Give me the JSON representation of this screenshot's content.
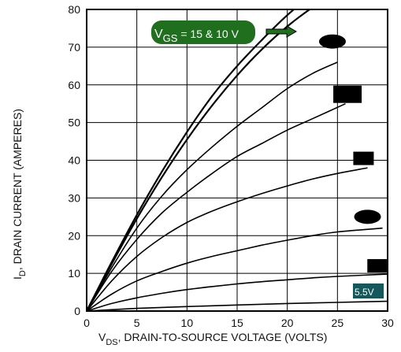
{
  "chart_data": {
    "type": "line",
    "xlabel_main": "V",
    "xlabel_sub": "DS",
    "xlabel_rest": ", DRAIN-TO-SOURCE VOLTAGE (VOLTS)",
    "ylabel_main": "I",
    "ylabel_sub": "D",
    "ylabel_rest": ", DRAIN CURRENT (AMPERES)",
    "xlim": [
      0,
      30
    ],
    "ylim": [
      0,
      80
    ],
    "xticks": [
      "0",
      "5",
      "10",
      "15",
      "20",
      "25",
      "30"
    ],
    "yticks": [
      "0",
      "10",
      "20",
      "30",
      "40",
      "50",
      "60",
      "70",
      "80"
    ],
    "grid": true,
    "accent_color": "#1f6f1f",
    "label_bg_color": "#000000",
    "vgs_label_v": "V",
    "vgs_label_sub": "GS",
    "vgs_label_rest": " = 15 & 10 V",
    "last_label": "5.5V",
    "series": [
      {
        "x": [
          0,
          2.5,
          5,
          7.5,
          10,
          12.5,
          15,
          17.5,
          20,
          22.5,
          25
        ],
        "values": [
          0,
          13,
          25.5,
          37,
          47.5,
          57,
          65,
          72,
          78.5,
          84,
          89
        ]
      },
      {
        "x": [
          0,
          2.5,
          5,
          7.5,
          10,
          12.5,
          15,
          17.5,
          20,
          22.5,
          25
        ],
        "values": [
          0,
          12.5,
          24.5,
          35.5,
          45.5,
          54.5,
          62.5,
          69.5,
          75.5,
          80.5,
          84.5
        ]
      },
      {
        "x": [
          0,
          2.5,
          5,
          7.5,
          10,
          12.5,
          15,
          17.5,
          20,
          22.5,
          25
        ],
        "values": [
          0,
          11.5,
          22,
          30.5,
          37.5,
          43.5,
          49,
          54,
          59,
          63,
          66
        ]
      },
      {
        "x": [
          0,
          2.5,
          5,
          7.5,
          10,
          12.5,
          15,
          17.5,
          20,
          22.5,
          25.8
        ],
        "values": [
          0,
          10.5,
          19,
          26,
          31.5,
          36.5,
          41,
          44.5,
          48,
          51,
          55
        ]
      },
      {
        "x": [
          0,
          2.5,
          5,
          7.5,
          10,
          12.5,
          15,
          17.5,
          20,
          22.5,
          25,
          28
        ],
        "values": [
          0,
          8,
          14.5,
          19.5,
          23.5,
          26.5,
          29,
          31.2,
          33.2,
          35,
          36.5,
          38
        ]
      },
      {
        "x": [
          0,
          2.5,
          5,
          7.5,
          10,
          12.5,
          15,
          17.5,
          20,
          22.5,
          25,
          29.5
        ],
        "values": [
          0,
          4.5,
          8,
          10.5,
          12.7,
          14.5,
          16,
          17.5,
          18.8,
          20,
          21,
          22
        ]
      },
      {
        "x": [
          0,
          2.5,
          5,
          7.5,
          10,
          12.5,
          15,
          17.5,
          20,
          22.5,
          25,
          30
        ],
        "values": [
          0,
          2,
          3.5,
          4.7,
          5.7,
          6.5,
          7.2,
          7.8,
          8.3,
          8.8,
          9.2,
          9.8
        ]
      },
      {
        "x": [
          0,
          5,
          10,
          15,
          20,
          25,
          30
        ],
        "values": [
          0,
          0.7,
          1.2,
          1.6,
          2,
          2.3,
          2.6
        ]
      }
    ],
    "curve_labels": [
      {
        "shape": "ellipse",
        "x": 24.5,
        "y": 71.5
      },
      {
        "shape": "rect",
        "x": 26.0,
        "y": 57.5
      },
      {
        "shape": "rect",
        "x": 27.6,
        "y": 40.5
      },
      {
        "shape": "ellipse",
        "x": 28.0,
        "y": 25.0
      },
      {
        "shape": "rect",
        "x": 29.0,
        "y": 12.0
      }
    ]
  }
}
